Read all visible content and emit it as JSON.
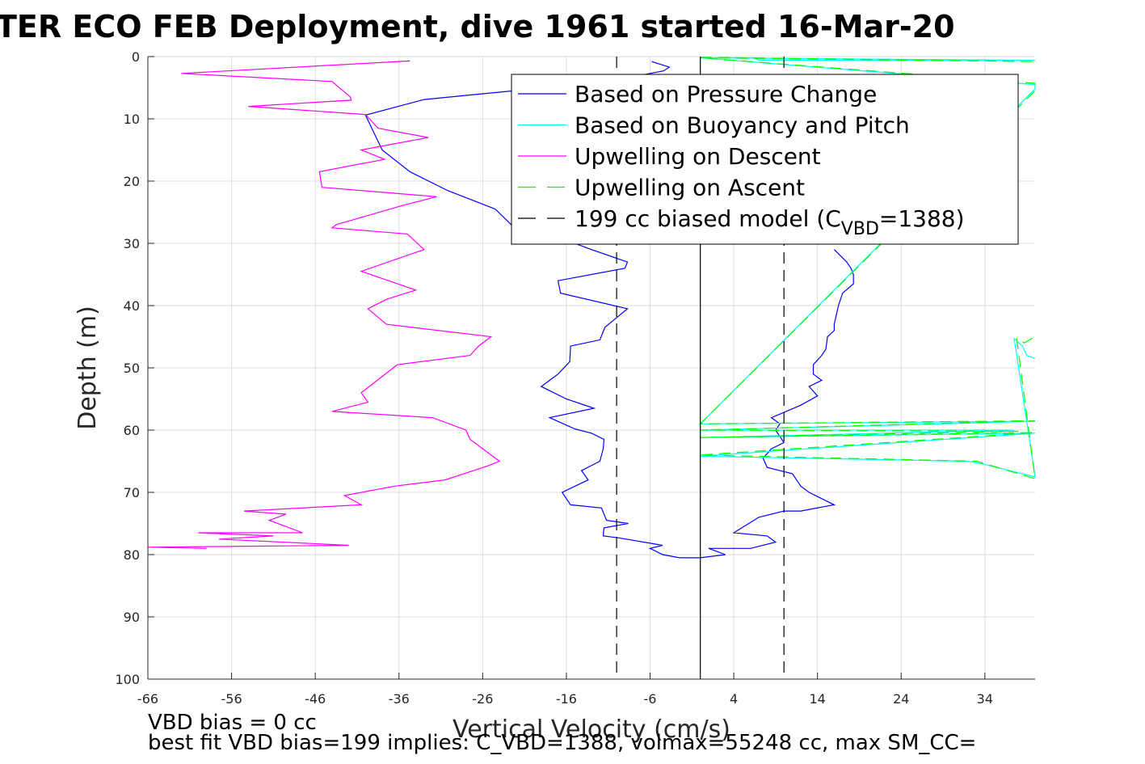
{
  "chart_data": {
    "type": "line",
    "title": "TER ECO FEB Deployment, dive 1961 started 16-Mar-20",
    "xlabel": "Vertical Velocity (cm/s)",
    "ylabel": "Depth (m)",
    "xlim": [
      -66,
      40
    ],
    "ylim": [
      0,
      100
    ],
    "y_reversed": true,
    "grid": true,
    "legend_placement": "top-right",
    "x_ticks": [
      "-66",
      "-56",
      "-46",
      "-36",
      "-26",
      "-16",
      "-6",
      "4",
      "14",
      "24",
      "34"
    ],
    "y_ticks": [
      "0",
      "10",
      "20",
      "30",
      "40",
      "50",
      "60",
      "70",
      "80",
      "90",
      "100"
    ],
    "series": [
      {
        "name": "Based on Pressure Change",
        "color": "#0000ff",
        "style": "solid",
        "points": [
          [
            -5.8,
            0.8
          ],
          [
            -3.7,
            1.7
          ],
          [
            -4.4,
            2.3
          ],
          [
            -11.8,
            4.2
          ],
          [
            -20,
            5.2
          ],
          [
            -27,
            6.1
          ],
          [
            -33,
            6.9
          ],
          [
            -40,
            9.4
          ],
          [
            -38,
            15
          ],
          [
            -34.7,
            18.5
          ],
          [
            -30.2,
            21.5
          ],
          [
            -24.5,
            24.5
          ],
          [
            -22.2,
            27.5
          ],
          [
            -16,
            29.5
          ],
          [
            -13,
            31
          ],
          [
            -8.7,
            33
          ],
          [
            -9,
            34
          ],
          [
            -17,
            36
          ],
          [
            -16.7,
            38
          ],
          [
            -8.7,
            40.5
          ],
          [
            -11.4,
            43.5
          ],
          [
            -12,
            45.5
          ],
          [
            -15.5,
            46.5
          ],
          [
            -15.6,
            49
          ],
          [
            -17,
            51
          ],
          [
            -18,
            52
          ],
          [
            -19,
            53
          ],
          [
            -16,
            55
          ],
          [
            -12.7,
            56.5
          ],
          [
            -18,
            58
          ],
          [
            -15,
            59.8
          ],
          [
            -13,
            60.5
          ],
          [
            -11.5,
            61.5
          ],
          [
            -11.6,
            63
          ],
          [
            -12,
            65
          ],
          [
            -14.2,
            66.5
          ],
          [
            -13.4,
            68
          ],
          [
            -16.5,
            70
          ],
          [
            -15.5,
            72
          ],
          [
            -11.8,
            72.5
          ],
          [
            -11.2,
            74.5
          ],
          [
            -8.6,
            75
          ],
          [
            -11.5,
            75.7
          ],
          [
            -11.6,
            77
          ],
          [
            -9.8,
            77.3
          ],
          [
            -4.5,
            78.5
          ],
          [
            -6,
            79
          ],
          [
            -4.5,
            80
          ],
          [
            -2.5,
            80.5
          ],
          [
            0,
            80.5
          ],
          [
            3,
            80
          ],
          [
            1,
            79
          ],
          [
            6,
            79
          ],
          [
            9,
            78
          ],
          [
            8,
            77
          ],
          [
            4,
            76.5
          ],
          [
            7,
            74
          ],
          [
            10,
            73
          ],
          [
            12,
            73
          ],
          [
            16,
            72
          ],
          [
            13,
            70
          ],
          [
            12,
            69
          ],
          [
            11,
            67
          ],
          [
            8,
            66
          ],
          [
            7.5,
            64.5
          ],
          [
            8.5,
            63
          ],
          [
            10,
            62
          ],
          [
            9,
            60
          ],
          [
            9.5,
            59
          ],
          [
            8.5,
            58
          ],
          [
            12,
            56
          ],
          [
            14,
            54.5
          ],
          [
            13,
            53
          ],
          [
            14.5,
            52
          ],
          [
            13.5,
            51
          ],
          [
            13.5,
            49.5
          ],
          [
            14.5,
            48
          ],
          [
            15,
            47
          ],
          [
            15.2,
            45
          ],
          [
            16,
            44
          ],
          [
            16,
            43
          ],
          [
            16.5,
            40
          ],
          [
            17,
            38
          ],
          [
            18.3,
            36.5
          ],
          [
            18.3,
            35
          ],
          [
            18,
            34
          ],
          [
            17.5,
            33
          ],
          [
            16,
            31
          ]
        ]
      },
      {
        "name": "Based on Buoyancy and Pitch",
        "color": "#00ffff",
        "style": "solid",
        "points": [
          [
            0,
            0.2
          ],
          [
            6.5,
            0.2
          ],
          [
            7,
            0.6
          ],
          [
            40,
            0.6
          ],
          [
            0,
            0.2
          ],
          [
            40,
            4.5
          ],
          [
            40,
            5.2
          ],
          [
            0,
            59
          ],
          [
            40,
            58.6
          ],
          [
            0,
            60
          ],
          [
            37.5,
            60
          ],
          [
            0,
            61.2
          ],
          [
            40,
            60.5
          ],
          [
            0,
            64.2
          ],
          [
            32,
            65
          ],
          [
            34,
            65.5
          ],
          [
            40,
            67.5
          ],
          [
            37.5,
            45.3
          ],
          [
            38.5,
            46.5
          ],
          [
            39,
            48
          ],
          [
            40,
            48.5
          ]
        ]
      },
      {
        "name": "Upwelling on Descent",
        "color": "#ff00ff",
        "style": "solid",
        "points": [
          [
            -34.7,
            0.7
          ],
          [
            -62,
            2.7
          ],
          [
            -44,
            4
          ],
          [
            -41.8,
            6.5
          ],
          [
            -41.7,
            7
          ],
          [
            -54,
            8
          ],
          [
            -40,
            9.3
          ],
          [
            -38.5,
            11.5
          ],
          [
            -32.5,
            13
          ],
          [
            -40.5,
            15
          ],
          [
            -37.7,
            16.5
          ],
          [
            -45.5,
            18.5
          ],
          [
            -45.2,
            21
          ],
          [
            -31.5,
            22.5
          ],
          [
            -35.8,
            24
          ],
          [
            -43.5,
            27
          ],
          [
            -44,
            27.5
          ],
          [
            -35,
            28.5
          ],
          [
            -33,
            31
          ],
          [
            -40.5,
            34.5
          ],
          [
            -34,
            37.5
          ],
          [
            -37.5,
            39
          ],
          [
            -39.7,
            40.5
          ],
          [
            -37.5,
            43
          ],
          [
            -25,
            45
          ],
          [
            -26.5,
            46.5
          ],
          [
            -27.5,
            48
          ],
          [
            -36.2,
            49.5
          ],
          [
            -40.5,
            54
          ],
          [
            -39.7,
            55.5
          ],
          [
            -44,
            57
          ],
          [
            -32,
            58
          ],
          [
            -28,
            60
          ],
          [
            -27.5,
            61.5
          ],
          [
            -24,
            65
          ],
          [
            -25.5,
            65.8
          ],
          [
            -30.5,
            68
          ],
          [
            -36.5,
            69
          ],
          [
            -42.5,
            70.5
          ],
          [
            -40.5,
            72
          ],
          [
            -54.5,
            73
          ],
          [
            -49.5,
            73.5
          ],
          [
            -51.5,
            74.5
          ],
          [
            -47.5,
            76.5
          ],
          [
            -60,
            76.5
          ],
          [
            -51,
            77
          ],
          [
            -57.5,
            77.5
          ],
          [
            -42,
            78.5
          ],
          [
            -66,
            78.8
          ],
          [
            -59,
            79
          ]
        ]
      },
      {
        "name": "Upwelling on Ascent",
        "color": "#00ff00",
        "style": "dashed",
        "points": [
          [
            0,
            0.1
          ],
          [
            40,
            0.8
          ],
          [
            0,
            0.2
          ],
          [
            40,
            4.3
          ],
          [
            40,
            5.5
          ],
          [
            0,
            59
          ],
          [
            40,
            58.5
          ],
          [
            0,
            60
          ],
          [
            38,
            60.2
          ],
          [
            0,
            61.2
          ],
          [
            40,
            60.4
          ],
          [
            0,
            64
          ],
          [
            33,
            65
          ],
          [
            36,
            66.2
          ],
          [
            40,
            67.8
          ],
          [
            37.8,
            45.3
          ],
          [
            38.7,
            46
          ],
          [
            40,
            45
          ]
        ]
      },
      {
        "name": "199 cc biased model (C_VBD=1388)",
        "color": "#000000",
        "style": "dashed",
        "points": [
          [
            -10,
            0
          ],
          [
            -10,
            100
          ]
        ]
      },
      {
        "name": "",
        "color": "#000000",
        "style": "dashed",
        "points": [
          [
            10,
            0
          ],
          [
            10,
            100
          ]
        ]
      },
      {
        "name": "",
        "color": "#000000",
        "style": "solid",
        "points": [
          [
            0,
            0
          ],
          [
            0,
            100
          ]
        ]
      }
    ],
    "legend_entries": [
      {
        "label": "Based on Pressure Change",
        "color": "#0000ff",
        "style": "solid"
      },
      {
        "label": "Based on Buoyancy and Pitch",
        "color": "#00ffff",
        "style": "solid"
      },
      {
        "label": "Upwelling on Descent",
        "color": "#ff00ff",
        "style": "solid"
      },
      {
        "label": "Upwelling on Ascent",
        "color": "#00ff00",
        "style": "dashed"
      },
      {
        "label_main": "199 cc biased model (C",
        "label_sub": "VBD",
        "label_tail": "=1388)",
        "color": "#000000",
        "style": "dashed"
      }
    ],
    "annotations": {
      "vbd_bias": "VBD bias = 0 cc",
      "best_fit": "best fit VBD bias=199 implies: C_VBD=1388, volmax=55248 cc, max SM_CC="
    }
  }
}
